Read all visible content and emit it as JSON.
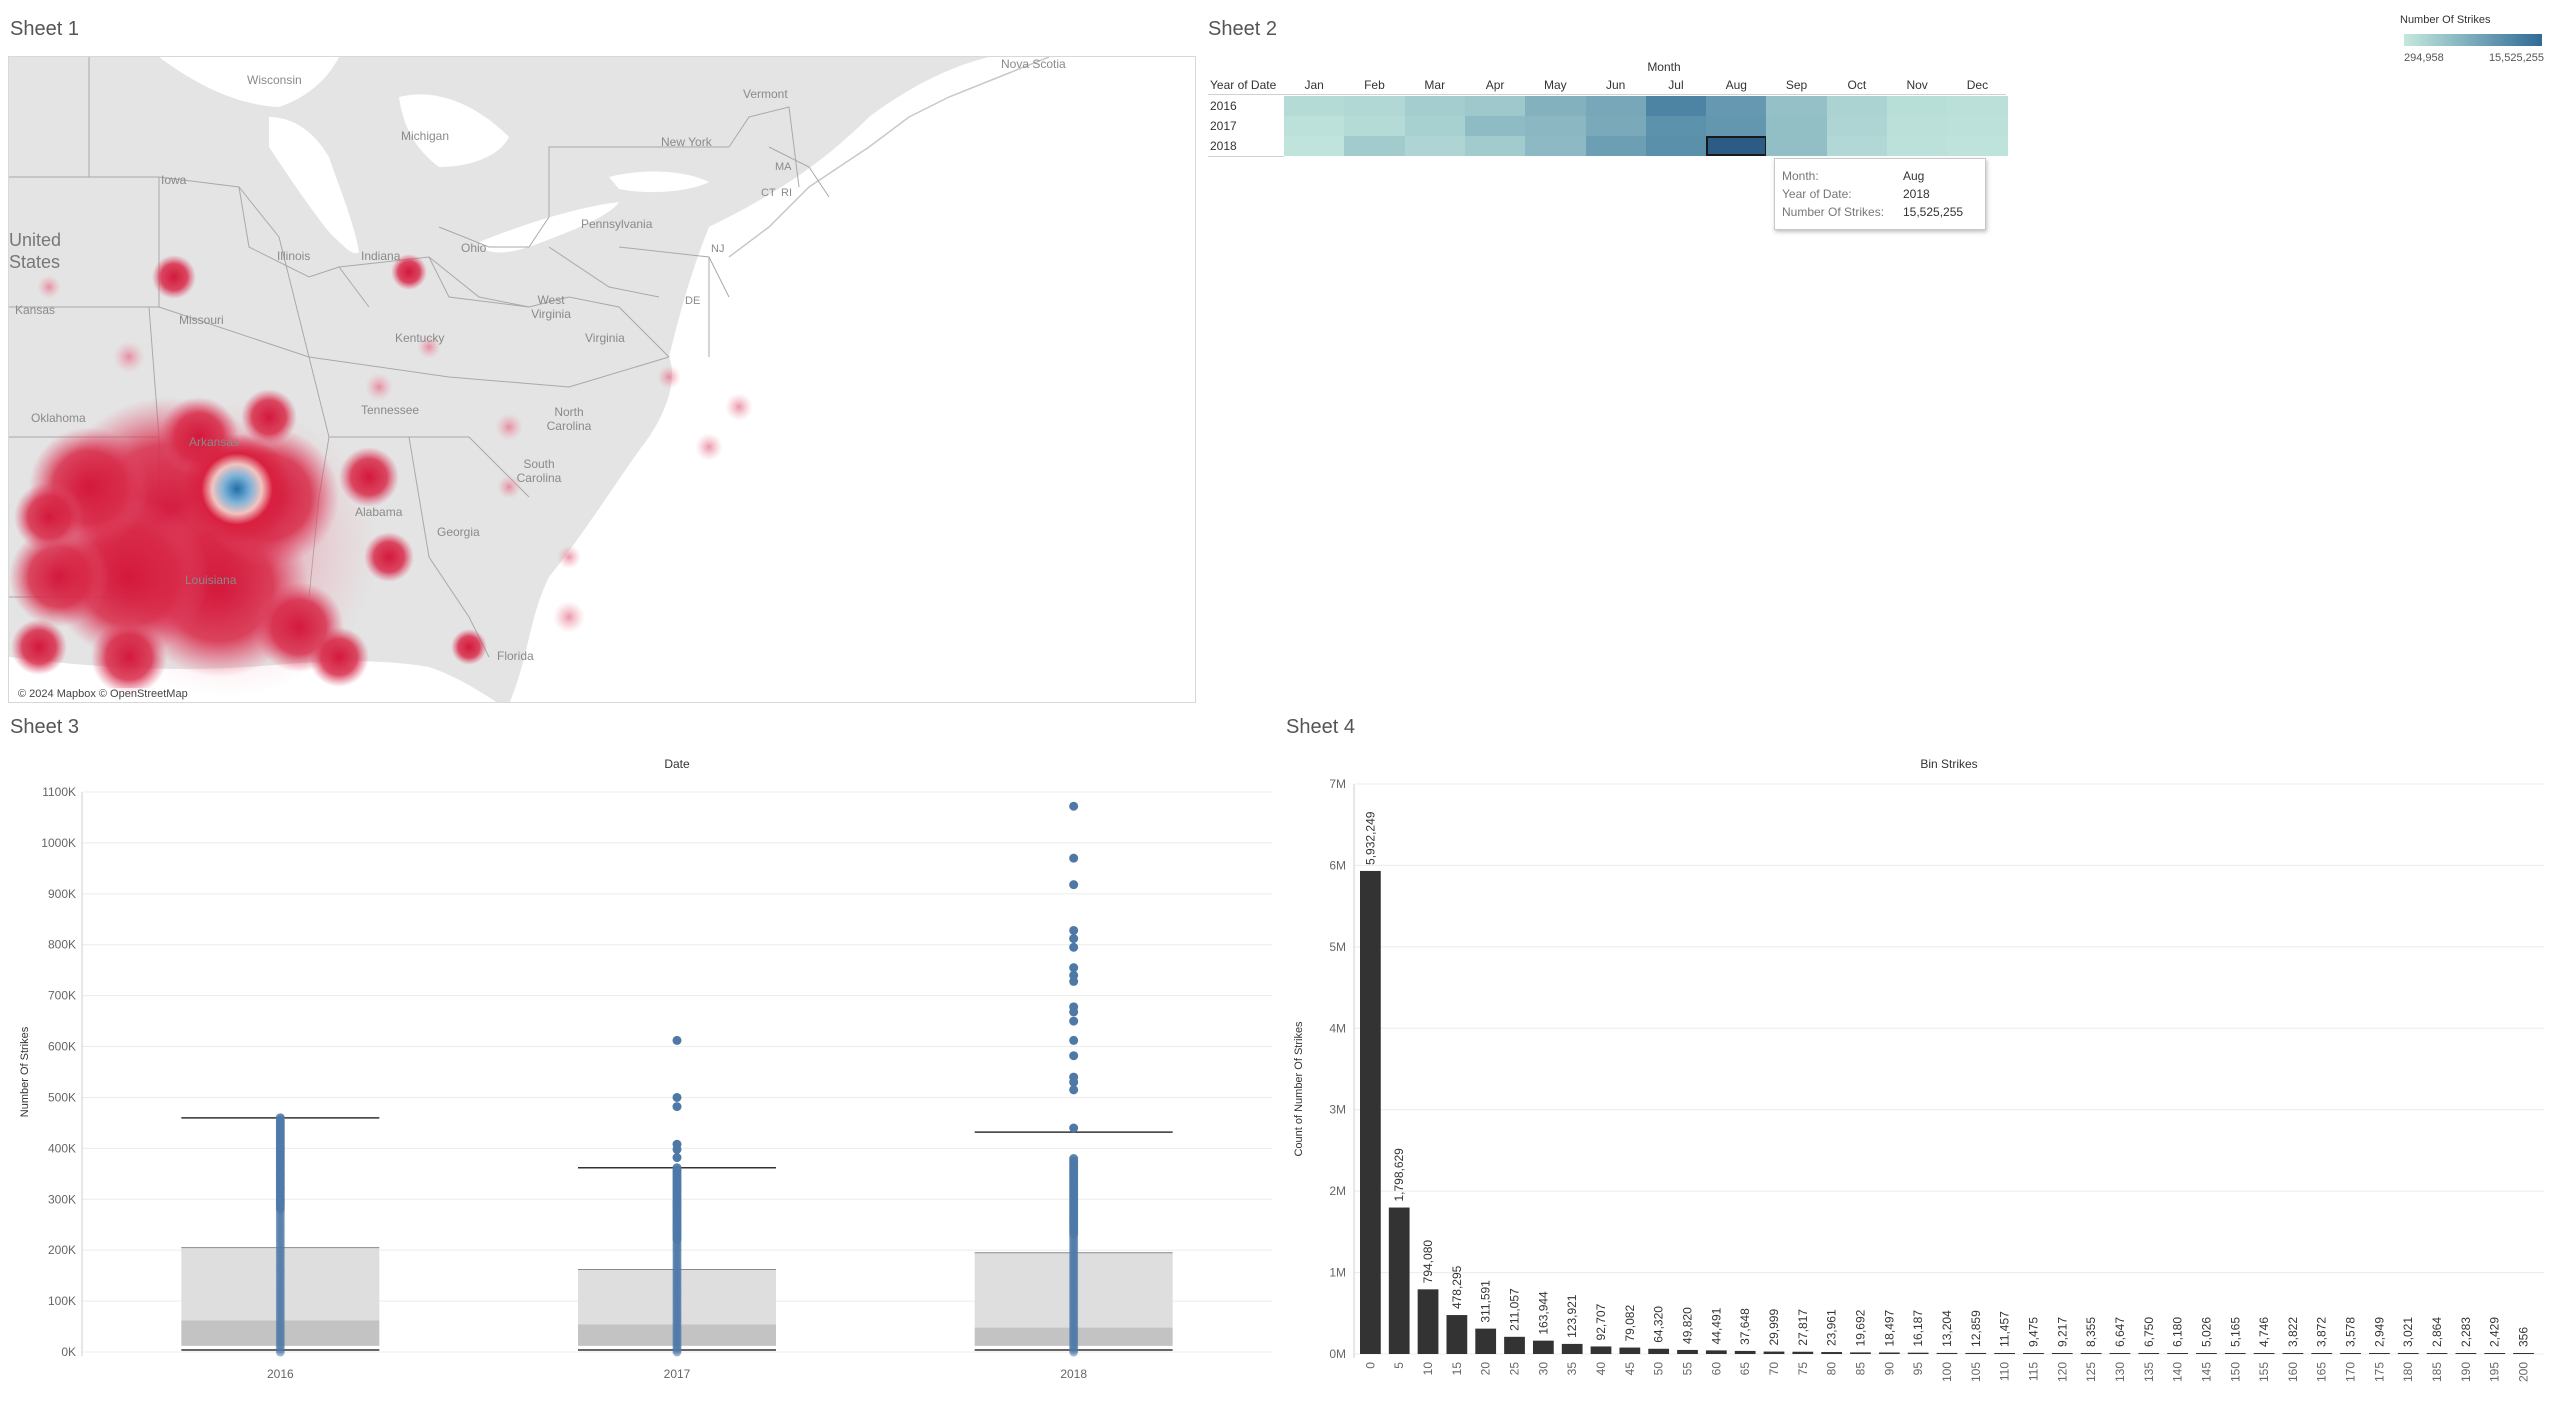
{
  "sheets": {
    "sheet1": {
      "title": "Sheet 1"
    },
    "sheet2": {
      "title": "Sheet 2"
    },
    "sheet3": {
      "title": "Sheet 3"
    },
    "sheet4": {
      "title": "Sheet 4"
    }
  },
  "map": {
    "attribution": "© 2024 Mapbox © OpenStreetMap",
    "labels": [
      {
        "text": "Wisconsin"
      },
      {
        "text": "Michigan"
      },
      {
        "text": "Iowa"
      },
      {
        "text": "Illinois"
      },
      {
        "text": "Indiana"
      },
      {
        "text": "Ohio"
      },
      {
        "text": "Missouri"
      },
      {
        "text": "Kansas"
      },
      {
        "text": "Kentucky"
      },
      {
        "text": "West Virginia"
      },
      {
        "text": "Virginia"
      },
      {
        "text": "Pennsylvania"
      },
      {
        "text": "New York"
      },
      {
        "text": "Vermont"
      },
      {
        "text": "Nova Scotia"
      },
      {
        "text": "MA"
      },
      {
        "text": "CT"
      },
      {
        "text": "RI"
      },
      {
        "text": "NJ"
      },
      {
        "text": "DE"
      },
      {
        "text": "Tennessee"
      },
      {
        "text": "North Carolina"
      },
      {
        "text": "South Carolina"
      },
      {
        "text": "Georgia"
      },
      {
        "text": "Alabama"
      },
      {
        "text": "Florida"
      },
      {
        "text": "Oklahoma"
      },
      {
        "text": "Arkansas"
      },
      {
        "text": "Louisiana"
      }
    ],
    "country_label": "United States"
  },
  "legend": {
    "title": "Number Of Strikes",
    "min": "294,958",
    "max": "15,525,255",
    "color_low": "#c4e8de",
    "color_high": "#2f6b96"
  },
  "heatmap": {
    "column_header": "Month",
    "row_header": "Year of Date",
    "months": [
      "Jan",
      "Feb",
      "Mar",
      "Apr",
      "May",
      "Jun",
      "Jul",
      "Aug",
      "Sep",
      "Oct",
      "Nov",
      "Dec"
    ],
    "years": [
      "2016",
      "2017",
      "2018"
    ],
    "values": [
      [
        0.08,
        0.1,
        0.18,
        0.22,
        0.4,
        0.48,
        0.78,
        0.6,
        0.28,
        0.14,
        0.06,
        0.05
      ],
      [
        0.04,
        0.08,
        0.16,
        0.32,
        0.35,
        0.46,
        0.66,
        0.62,
        0.3,
        0.12,
        0.05,
        0.04
      ],
      [
        0.02,
        0.2,
        0.12,
        0.2,
        0.34,
        0.55,
        0.68,
        1.0,
        0.3,
        0.1,
        0.04,
        0.03
      ]
    ],
    "selected": {
      "year_index": 2,
      "month_index": 7
    }
  },
  "tooltip": {
    "rows": [
      {
        "key": "Month:",
        "value": "Aug"
      },
      {
        "key": "Year of Date:",
        "value": "2018"
      },
      {
        "key": "Number Of Strikes:",
        "value": "15,525,255"
      }
    ]
  },
  "chart_data": [
    {
      "type": "box",
      "title": "Date",
      "xlabel": "",
      "ylabel": "Number Of Strikes",
      "y_tick_labels": [
        "0K",
        "100K",
        "200K",
        "300K",
        "400K",
        "500K",
        "600K",
        "700K",
        "800K",
        "900K",
        "1000K",
        "1100K"
      ],
      "ylim": [
        0,
        1100000
      ],
      "categories": [
        "2016",
        "2017",
        "2018"
      ],
      "boxes": [
        {
          "category": "2016",
          "min": 0,
          "lower_hinge": 12000,
          "median": 62000,
          "upper_hinge": 205000,
          "whisker_high": 460000,
          "points_dense_to": 460000,
          "outliers": []
        },
        {
          "category": "2017",
          "min": 0,
          "lower_hinge": 12000,
          "median": 54000,
          "upper_hinge": 162000,
          "whisker_high": 362000,
          "points_dense_to": 362000,
          "outliers": [
            382000,
            398000,
            408000,
            482000,
            500000,
            612000
          ]
        },
        {
          "category": "2018",
          "min": 0,
          "lower_hinge": 12000,
          "median": 48000,
          "upper_hinge": 195000,
          "whisker_high": 432000,
          "points_dense_to": 380000,
          "outliers": [
            440000,
            515000,
            530000,
            540000,
            582000,
            612000,
            650000,
            668000,
            678000,
            728000,
            740000,
            755000,
            795000,
            812000,
            828000,
            918000,
            970000,
            1072000
          ]
        }
      ],
      "point_color": "#4e79a7"
    },
    {
      "type": "bar",
      "title": "Bin Strikes",
      "xlabel": "",
      "ylabel": "Count of Number Of Strikes",
      "y_tick_labels": [
        "0M",
        "1M",
        "2M",
        "3M",
        "4M",
        "5M",
        "6M",
        "7M"
      ],
      "ylim": [
        0,
        7000000
      ],
      "bar_color": "#333333",
      "categories": [
        "0",
        "5",
        "10",
        "15",
        "20",
        "25",
        "30",
        "35",
        "40",
        "45",
        "50",
        "55",
        "60",
        "65",
        "70",
        "75",
        "80",
        "85",
        "90",
        "95",
        "100",
        "105",
        "110",
        "115",
        "120",
        "125",
        "130",
        "135",
        "140",
        "145",
        "150",
        "155",
        "160",
        "165",
        "170",
        "175",
        "180",
        "185",
        "190",
        "195",
        "200"
      ],
      "values": [
        5932249,
        1798629,
        794080,
        478295,
        311591,
        211057,
        163944,
        123921,
        92707,
        79082,
        64320,
        49820,
        44491,
        37648,
        29999,
        27817,
        23961,
        19692,
        18497,
        16187,
        13204,
        12859,
        11457,
        9475,
        9217,
        8355,
        6647,
        6750,
        6180,
        5026,
        5165,
        4746,
        3822,
        3872,
        3578,
        2949,
        3021,
        2864,
        2283,
        2429,
        356
      ],
      "labels": [
        "5,932,249",
        "1,798,629",
        "794,080",
        "478,295",
        "311,591",
        "211,057",
        "163,944",
        "123,921",
        "92,707",
        "79,082",
        "64,320",
        "49,820",
        "44,491",
        "37,648",
        "29,999",
        "27,817",
        "23,961",
        "19,692",
        "18,497",
        "16,187",
        "13,204",
        "12,859",
        "11,457",
        "9,475",
        "9,217",
        "8,355",
        "6,647",
        "6,750",
        "6,180",
        "5,026",
        "5,165",
        "4,746",
        "3,822",
        "3,872",
        "3,578",
        "2,949",
        "3,021",
        "2,864",
        "2,283",
        "2,429",
        "356"
      ]
    }
  ]
}
